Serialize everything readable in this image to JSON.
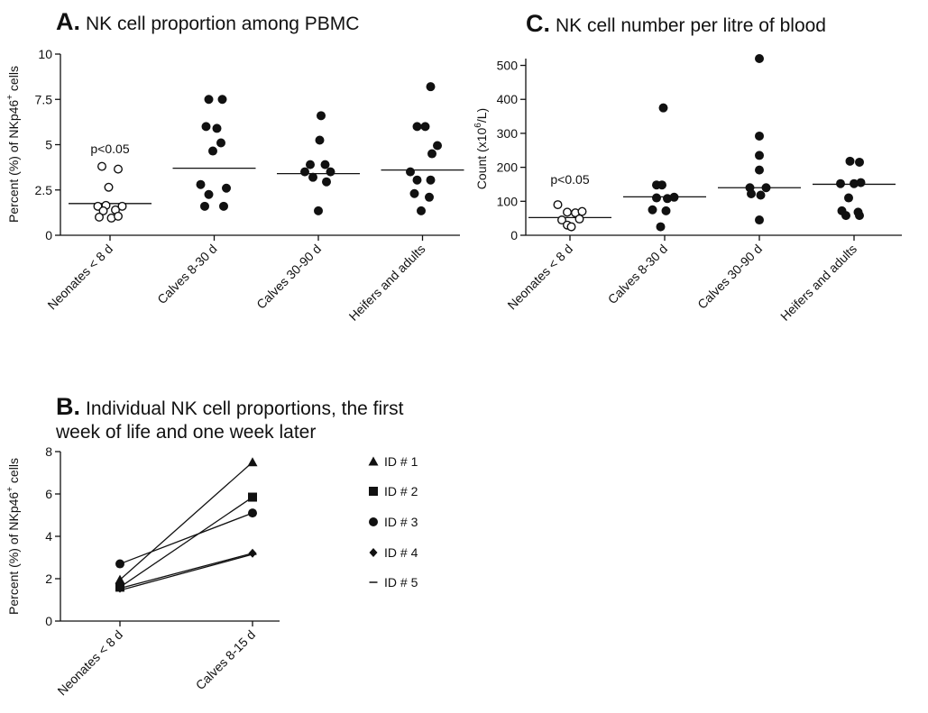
{
  "chart_data": [
    {
      "id": "A",
      "type": "scatter",
      "letter": "A.",
      "title": "NK cell proportion among PBMC",
      "ylabel_pre": "Percent (%) of NKp46",
      "ylabel_sup": "+",
      "ylabel_post": " cells",
      "ylim": [
        0,
        10
      ],
      "yticks": [
        0,
        2.5,
        5,
        7.5,
        10
      ],
      "ytick_labels": [
        "0",
        "2.5",
        "5",
        "7.5",
        "10"
      ],
      "categories": [
        "Neonates < 8 d",
        "Calves 8-30 d",
        "Calves 30-90 d",
        "Heifers and adults"
      ],
      "annotation": "p<0.05",
      "groups": [
        {
          "name": "Neonates < 8 d",
          "open": true,
          "median": 1.75,
          "points": [
            [
              -0.3,
              3.8
            ],
            [
              0.3,
              3.65
            ],
            [
              -0.05,
              2.65
            ],
            [
              -0.45,
              1.6
            ],
            [
              -0.15,
              1.65
            ],
            [
              0.45,
              1.6
            ],
            [
              0.2,
              1.4
            ],
            [
              -0.25,
              1.35
            ],
            [
              -0.4,
              1.0
            ],
            [
              0.05,
              0.95
            ],
            [
              0.3,
              1.05
            ]
          ]
        },
        {
          "name": "Calves 8-30 d",
          "open": false,
          "median": 3.7,
          "points": [
            [
              -0.2,
              7.5
            ],
            [
              0.3,
              7.5
            ],
            [
              -0.3,
              6.0
            ],
            [
              0.1,
              5.9
            ],
            [
              0.25,
              5.1
            ],
            [
              -0.05,
              4.65
            ],
            [
              -0.5,
              2.8
            ],
            [
              0.45,
              2.6
            ],
            [
              -0.2,
              2.25
            ],
            [
              -0.35,
              1.6
            ],
            [
              0.35,
              1.6
            ]
          ]
        },
        {
          "name": "Calves 30-90 d",
          "open": false,
          "median": 3.4,
          "points": [
            [
              0.1,
              6.6
            ],
            [
              0.05,
              5.25
            ],
            [
              -0.3,
              3.9
            ],
            [
              0.25,
              3.9
            ],
            [
              -0.5,
              3.5
            ],
            [
              0.45,
              3.5
            ],
            [
              -0.2,
              3.2
            ],
            [
              0.3,
              2.95
            ],
            [
              0.0,
              1.35
            ]
          ]
        },
        {
          "name": "Heifers and adults",
          "open": false,
          "median": 3.6,
          "points": [
            [
              0.3,
              8.2
            ],
            [
              -0.2,
              6.0
            ],
            [
              0.1,
              6.0
            ],
            [
              0.55,
              4.95
            ],
            [
              0.35,
              4.5
            ],
            [
              -0.45,
              3.5
            ],
            [
              -0.2,
              3.05
            ],
            [
              0.3,
              3.05
            ],
            [
              -0.3,
              2.3
            ],
            [
              0.25,
              2.1
            ],
            [
              -0.05,
              1.35
            ]
          ]
        }
      ]
    },
    {
      "id": "C",
      "type": "scatter",
      "letter": "C.",
      "title": "NK cell number per litre of blood",
      "ylabel_pre": "Count (x10",
      "ylabel_sup": "6",
      "ylabel_post": "/L)",
      "ylim": [
        0,
        520
      ],
      "yticks": [
        0,
        100,
        200,
        300,
        400,
        500
      ],
      "ytick_labels": [
        "0",
        "100",
        "200",
        "300",
        "400",
        "500"
      ],
      "categories": [
        "Neonates < 8 d",
        "Calves 8-30 d",
        "Calves 30-90 d",
        "Heifers and adults"
      ],
      "annotation": "p<0.05",
      "groups": [
        {
          "name": "Neonates < 8 d",
          "open": true,
          "median": 52,
          "points": [
            [
              -0.45,
              90
            ],
            [
              -0.1,
              68
            ],
            [
              0.2,
              66
            ],
            [
              0.45,
              70
            ],
            [
              -0.3,
              45
            ],
            [
              0.35,
              48
            ],
            [
              -0.1,
              30
            ],
            [
              0.05,
              25
            ]
          ]
        },
        {
          "name": "Calves 8-30 d",
          "open": false,
          "median": 113,
          "points": [
            [
              -0.05,
              375
            ],
            [
              -0.3,
              148
            ],
            [
              -0.1,
              148
            ],
            [
              -0.3,
              110
            ],
            [
              0.1,
              108
            ],
            [
              0.35,
              112
            ],
            [
              -0.45,
              75
            ],
            [
              0.05,
              72
            ],
            [
              -0.15,
              25
            ]
          ]
        },
        {
          "name": "Calves 30-90 d",
          "open": false,
          "median": 140,
          "points": [
            [
              0.0,
              520
            ],
            [
              0.0,
              292
            ],
            [
              0.0,
              235
            ],
            [
              0.0,
              192
            ],
            [
              -0.35,
              140
            ],
            [
              0.25,
              140
            ],
            [
              0.05,
              118
            ],
            [
              -0.3,
              122
            ],
            [
              0.0,
              45
            ]
          ]
        },
        {
          "name": "Heifers and adults",
          "open": false,
          "median": 150,
          "points": [
            [
              -0.15,
              218
            ],
            [
              0.2,
              215
            ],
            [
              -0.5,
              152
            ],
            [
              0.0,
              152
            ],
            [
              0.25,
              155
            ],
            [
              -0.2,
              110
            ],
            [
              -0.45,
              72
            ],
            [
              0.15,
              68
            ],
            [
              -0.3,
              58
            ],
            [
              0.2,
              58
            ]
          ]
        }
      ]
    },
    {
      "id": "B",
      "type": "line",
      "letter": "B.",
      "title_line1": "Individual NK cell proportions, the first",
      "title_line2": "week of life and one week later",
      "ylabel_pre": "Percent (%) of NKp46",
      "ylabel_sup": "+",
      "ylabel_post": " cells",
      "ylim": [
        0,
        8
      ],
      "yticks": [
        0,
        2,
        4,
        6,
        8
      ],
      "ytick_labels": [
        "0",
        "2",
        "4",
        "6",
        "8"
      ],
      "categories": [
        "Neonates < 8 d",
        "Calves 8-15 d"
      ],
      "series": [
        {
          "name": "ID # 1",
          "marker": "triangle",
          "values": [
            1.95,
            7.5
          ]
        },
        {
          "name": "ID # 2",
          "marker": "square",
          "values": [
            1.6,
            5.85
          ]
        },
        {
          "name": "ID # 3",
          "marker": "circle",
          "values": [
            2.7,
            5.1
          ]
        },
        {
          "name": "ID # 4",
          "marker": "diamond",
          "values": [
            1.55,
            3.2
          ]
        },
        {
          "name": "ID # 5",
          "marker": "dash",
          "values": [
            1.45,
            3.15
          ]
        }
      ]
    }
  ]
}
